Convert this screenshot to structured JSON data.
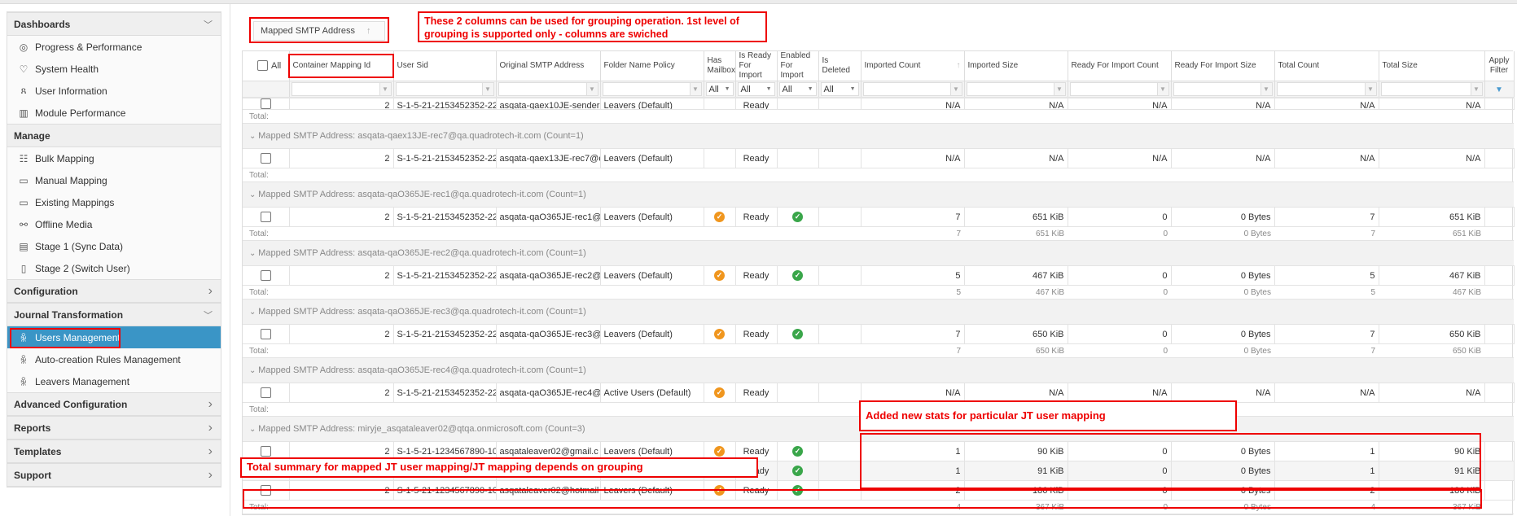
{
  "sidebar": {
    "sections": [
      {
        "label": "Dashboards",
        "chevron": "chevron-down",
        "items": [
          {
            "label": "Progress & Performance",
            "icon": "gauge-icon"
          },
          {
            "label": "System Health",
            "icon": "heart-pulse-icon"
          },
          {
            "label": "User Information",
            "icon": "users-icon"
          },
          {
            "label": "Module Performance",
            "icon": "bar-chart-icon"
          }
        ]
      },
      {
        "label": "Manage",
        "chevron": "",
        "items": [
          {
            "label": "Bulk Mapping",
            "icon": "stack-icon"
          },
          {
            "label": "Manual Mapping",
            "icon": "box-icon"
          },
          {
            "label": "Existing Mappings",
            "icon": "box-icon"
          },
          {
            "label": "Offline Media",
            "icon": "link-icon"
          },
          {
            "label": "Stage 1 (Sync Data)",
            "icon": "report-icon"
          },
          {
            "label": "Stage 2 (Switch User)",
            "icon": "document-icon"
          }
        ]
      },
      {
        "label": "Configuration",
        "chevron": "chevron-right",
        "items": []
      },
      {
        "label": "Journal Transformation",
        "chevron": "chevron-down",
        "items": [
          {
            "label": "Users Management",
            "icon": "user-group-icon",
            "active": true
          },
          {
            "label": "Auto-creation Rules Management",
            "icon": "user-group-icon"
          },
          {
            "label": "Leavers Management",
            "icon": "user-group-icon"
          }
        ]
      },
      {
        "label": "Advanced Configuration",
        "chevron": "chevron-right",
        "items": []
      },
      {
        "label": "Reports",
        "chevron": "chevron-right",
        "items": []
      },
      {
        "label": "Templates",
        "chevron": "chevron-right",
        "items": []
      },
      {
        "label": "Support",
        "chevron": "chevron-right",
        "items": []
      }
    ]
  },
  "grouping": {
    "label": "Mapped SMTP Address",
    "sort": "↑"
  },
  "grid": {
    "all_label": "All",
    "columns": [
      {
        "label": "Container Mapping Id",
        "filter": "text",
        "align": "r"
      },
      {
        "label": "User Sid",
        "filter": "text"
      },
      {
        "label": "Original SMTP Address",
        "filter": "text"
      },
      {
        "label": "Folder Name Policy",
        "filter": "text"
      },
      {
        "label": "Has Mailbox",
        "filter": "select",
        "align": "c"
      },
      {
        "label": "Is Ready For Import",
        "filter": "select",
        "align": "c"
      },
      {
        "label": "Enabled For Import",
        "filter": "select",
        "align": "c"
      },
      {
        "label": "Is Deleted",
        "filter": "select",
        "align": "c"
      },
      {
        "label": "Imported Count",
        "filter": "text",
        "align": "r",
        "sort": "↑"
      },
      {
        "label": "Imported Size",
        "filter": "text",
        "align": "r"
      },
      {
        "label": "Ready For Import Count",
        "filter": "text",
        "align": "r"
      },
      {
        "label": "Ready For Import Size",
        "filter": "text",
        "align": "r"
      },
      {
        "label": "Total Count",
        "filter": "text",
        "align": "r"
      },
      {
        "label": "Total Size",
        "filter": "text",
        "align": "r"
      },
      {
        "label": "Apply Filter",
        "filter": "apply",
        "align": "c"
      }
    ],
    "select_value": "All",
    "total_label": "Total:",
    "group_prefix": "Mapped SMTP Address: ",
    "leading_row": {
      "cells": [
        "2",
        "S-1-5-21-2153452352-22",
        "asqata-qaex10JE-sender",
        "Leavers (Default)",
        "",
        "Ready",
        "",
        "",
        "N/A",
        "N/A",
        "N/A",
        "N/A",
        "N/A",
        "N/A"
      ]
    },
    "leading_total": [
      "",
      "",
      "",
      "",
      "",
      "",
      "",
      "",
      "",
      "",
      "",
      "",
      "",
      ""
    ],
    "groups": [
      {
        "title": "asqata-qaex13JE-rec7@qa.quadrotech-it.com (Count=1)",
        "rows": [
          {
            "cells": [
              "2",
              "S-1-5-21-2153452352-22",
              "asqata-qaex13JE-rec7@q",
              "Leavers (Default)",
              "",
              "Ready",
              "",
              "",
              "N/A",
              "N/A",
              "N/A",
              "N/A",
              "N/A",
              "N/A"
            ]
          }
        ],
        "total": [
          "",
          "",
          "",
          "",
          "",
          "",
          "",
          "",
          "",
          "",
          "",
          "",
          "",
          ""
        ]
      },
      {
        "title": "asqata-qaO365JE-rec1@qa.quadrotech-it.com (Count=1)",
        "rows": [
          {
            "cells": [
              "2",
              "S-1-5-21-2153452352-22",
              "asqata-qaO365JE-rec1@",
              "Leavers (Default)",
              "orange-check",
              "Ready",
              "green-check",
              "",
              "7",
              "651 KiB",
              "0",
              "0 Bytes",
              "7",
              "651 KiB"
            ]
          }
        ],
        "total": [
          "",
          "",
          "",
          "",
          "",
          "",
          "",
          "",
          "7",
          "651 KiB",
          "0",
          "0 Bytes",
          "7",
          "651 KiB"
        ]
      },
      {
        "title": "asqata-qaO365JE-rec2@qa.quadrotech-it.com (Count=1)",
        "rows": [
          {
            "cells": [
              "2",
              "S-1-5-21-2153452352-22",
              "asqata-qaO365JE-rec2@",
              "Leavers (Default)",
              "orange-check",
              "Ready",
              "green-check",
              "",
              "5",
              "467 KiB",
              "0",
              "0 Bytes",
              "5",
              "467 KiB"
            ]
          }
        ],
        "total": [
          "",
          "",
          "",
          "",
          "",
          "",
          "",
          "",
          "5",
          "467 KiB",
          "0",
          "0 Bytes",
          "5",
          "467 KiB"
        ]
      },
      {
        "title": "asqata-qaO365JE-rec3@qa.quadrotech-it.com (Count=1)",
        "rows": [
          {
            "cells": [
              "2",
              "S-1-5-21-2153452352-22",
              "asqata-qaO365JE-rec3@",
              "Leavers (Default)",
              "orange-check",
              "Ready",
              "green-check",
              "",
              "7",
              "650 KiB",
              "0",
              "0 Bytes",
              "7",
              "650 KiB"
            ]
          }
        ],
        "total": [
          "",
          "",
          "",
          "",
          "",
          "",
          "",
          "",
          "7",
          "650 KiB",
          "0",
          "0 Bytes",
          "7",
          "650 KiB"
        ]
      },
      {
        "title": "asqata-qaO365JE-rec4@qa.quadrotech-it.com (Count=1)",
        "rows": [
          {
            "cells": [
              "2",
              "S-1-5-21-2153452352-22",
              "asqata-qaO365JE-rec4@",
              "Active Users (Default)",
              "orange-check",
              "Ready",
              "",
              "",
              "N/A",
              "N/A",
              "N/A",
              "N/A",
              "N/A",
              "N/A"
            ]
          }
        ],
        "total": [
          "",
          "",
          "",
          "",
          "",
          "",
          "",
          "",
          "",
          "",
          "",
          "",
          "",
          ""
        ]
      },
      {
        "title": "miryje_asqataleaver02@qtqa.onmicrosoft.com (Count=3)",
        "rows": [
          {
            "cells": [
              "2",
              "S-1-5-21-1234567890-10",
              "asqataleaver02@gmail.c",
              "Leavers (Default)",
              "orange-check",
              "Ready",
              "green-check",
              "",
              "1",
              "90 KiB",
              "0",
              "0 Bytes",
              "1",
              "90 KiB"
            ]
          },
          {
            "cells": [
              "",
              "",
              "",
              "",
              "orange-check",
              "Ready",
              "green-check",
              "",
              "1",
              "91 KiB",
              "0",
              "0 Bytes",
              "1",
              "91 KiB"
            ]
          },
          {
            "cells": [
              "2",
              "S-1-5-21-1234567890-10",
              "asqataleaver02@hotmail",
              "Leavers (Default)",
              "orange-check",
              "Ready",
              "green-check",
              "",
              "2",
              "186 KiB",
              "0",
              "0 Bytes",
              "2",
              "186 KiB"
            ]
          }
        ],
        "total": [
          "",
          "",
          "",
          "",
          "",
          "",
          "",
          "",
          "4",
          "367 KiB",
          "0",
          "0 Bytes",
          "4",
          "367 KiB"
        ]
      }
    ]
  },
  "annotations": {
    "grouping_note": "These 2 columns can be used for grouping operation. 1st level of grouping is supported only - columns are swiched",
    "stats_note": "Added new stats for particular JT user mapping",
    "total_note": "Total summary for mapped JT user mapping/JT mapping depends on  grouping"
  },
  "colors": {
    "accent": "#3a95c6",
    "orange": "#f0961e",
    "green": "#3aa64a",
    "annotation": "#e00000"
  }
}
